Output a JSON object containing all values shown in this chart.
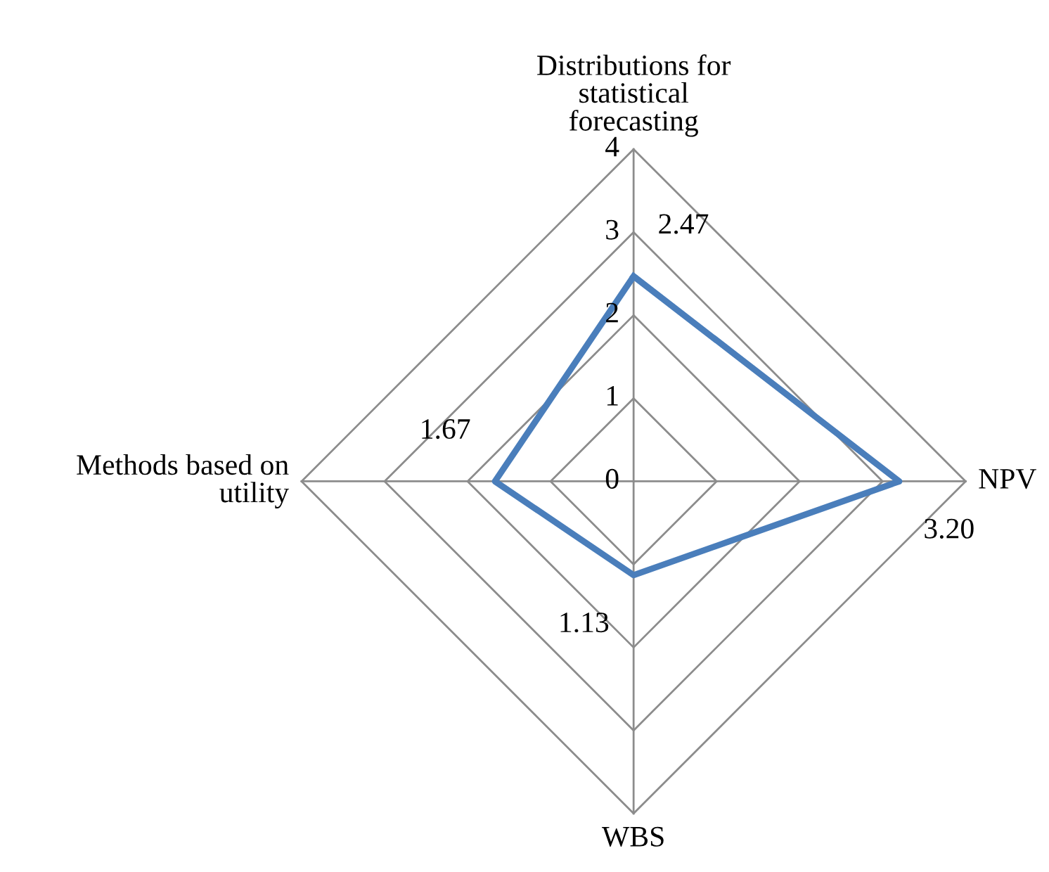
{
  "chart_data": {
    "type": "radar",
    "categories": [
      "Distributions for\nstatistical\nforecasting",
      "NPV",
      "WBS",
      "Methods based on\nutility"
    ],
    "series": [
      {
        "color": "#4a7ebb",
        "values": [
          2.47,
          3.2,
          1.13,
          1.67
        ],
        "value_labels": [
          "2.47",
          "3.20",
          "1.13",
          "1.67"
        ]
      }
    ],
    "ylim": [
      0,
      4
    ],
    "yticks": [
      0,
      1,
      2,
      3,
      4
    ],
    "grid": true,
    "legend": false
  }
}
